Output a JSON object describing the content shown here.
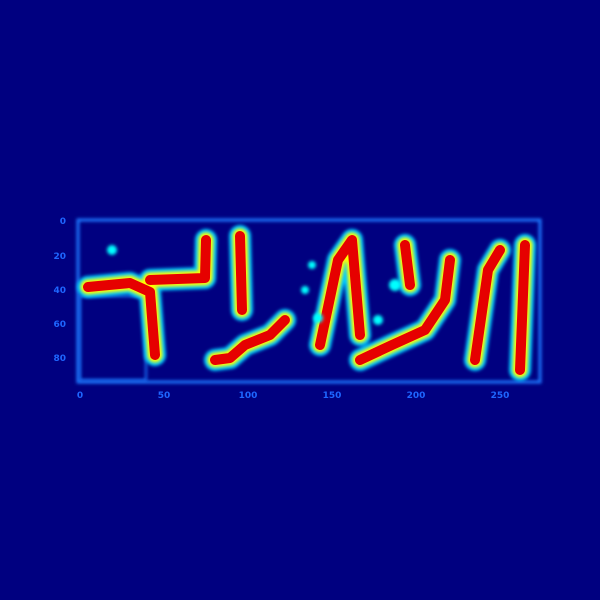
{
  "chart_data": {
    "type": "heatmap",
    "title": "",
    "xlabel": "",
    "ylabel": "",
    "colormap": "jet",
    "background_color": "#000080",
    "colormap_stops": [
      "#000080",
      "#0000ff",
      "#00a0ff",
      "#00ffff",
      "#ffff00",
      "#ff0000",
      "#800000"
    ],
    "x_ticks": [
      "0",
      "50",
      "100",
      "150",
      "200",
      "250"
    ],
    "y_ticks": [
      "0",
      "20",
      "40",
      "60",
      "80"
    ],
    "xlim": [
      0,
      275
    ],
    "ylim": [
      0,
      95
    ],
    "grid": false,
    "legend": "none"
  }
}
